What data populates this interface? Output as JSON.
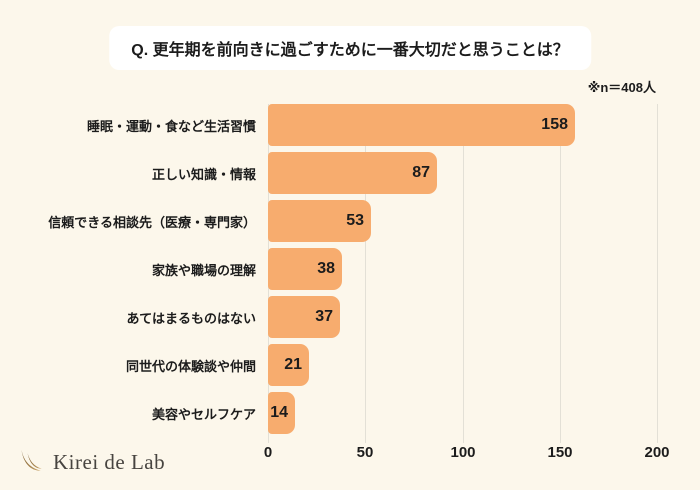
{
  "page": {
    "background_color": "#FCF7EB"
  },
  "title": {
    "text": "Q. 更年期を前向きに過ごすために一番大切だと思うことは？"
  },
  "note": {
    "text": "※n＝408人"
  },
  "chart_data": {
    "type": "bar",
    "orientation": "horizontal",
    "title": "Q. 更年期を前向きに過ごすために一番大切だと思うことは？",
    "sample_note": "※n＝408人",
    "categories": [
      "睡眠・運動・食など生活習慣",
      "正しい知識・情報",
      "信頼できる相談先（医療・専門家）",
      "家族や職場の理解",
      "あてはまるものはない",
      "同世代の体験談や仲間",
      "美容やセルフケア"
    ],
    "values": [
      158,
      87,
      53,
      38,
      37,
      21,
      14
    ],
    "x_ticks": [
      0,
      50,
      100,
      150,
      200
    ],
    "xlim": [
      0,
      200
    ],
    "grid": true,
    "bar_color": "#F7AC6E",
    "grid_color": "#E3E0D6",
    "value_label_color": "#1C1C1C"
  },
  "logo": {
    "text": "Kirei de Lab",
    "icon": "lash-swoosh-icon",
    "icon_color_dark": "#7A5A2E",
    "icon_color_light": "#C9A468"
  }
}
